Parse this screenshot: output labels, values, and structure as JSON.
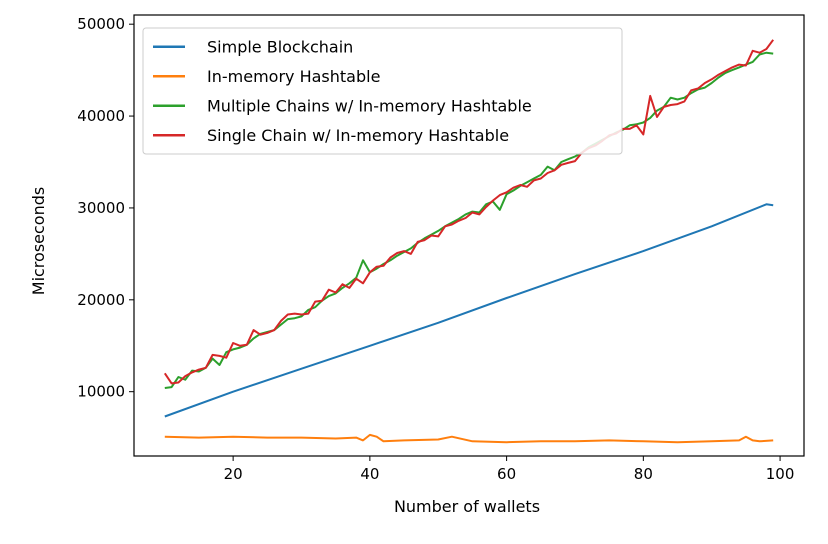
{
  "chart_data": {
    "type": "line",
    "title": "",
    "xlabel": "Number of wallets",
    "ylabel": "Microseconds",
    "xlim": [
      5.5,
      103.5
    ],
    "ylim": [
      3000,
      51000
    ],
    "xticks": [
      20,
      40,
      60,
      80,
      100
    ],
    "yticks": [
      10000,
      20000,
      30000,
      40000,
      50000
    ],
    "grid": false,
    "legend_position": "top-left",
    "series": [
      {
        "name": "Simple Blockchain",
        "color": "#1f77b4",
        "x": [
          10,
          20,
          30,
          40,
          50,
          60,
          70,
          80,
          90,
          98,
          99
        ],
        "y": [
          7300,
          10000,
          12500,
          15000,
          17500,
          20200,
          22800,
          25300,
          28000,
          30400,
          30300
        ]
      },
      {
        "name": "In-memory Hashtable",
        "color": "#ff7f0e",
        "x": [
          10,
          15,
          20,
          25,
          30,
          35,
          38,
          39,
          40,
          41,
          42,
          45,
          50,
          52,
          55,
          60,
          65,
          70,
          75,
          80,
          85,
          90,
          94,
          95,
          96,
          97,
          99
        ],
        "y": [
          5100,
          5000,
          5100,
          5000,
          5000,
          4900,
          5000,
          4700,
          5300,
          5100,
          4600,
          4700,
          4800,
          5100,
          4600,
          4500,
          4600,
          4600,
          4700,
          4600,
          4500,
          4600,
          4700,
          5100,
          4700,
          4600,
          4700
        ]
      },
      {
        "name": "Multiple Chains w/ In-memory Hashtable",
        "color": "#2ca02c",
        "x": [
          10,
          11,
          12,
          13,
          14,
          15,
          16,
          17,
          18,
          19,
          20,
          21,
          22,
          23,
          24,
          25,
          26,
          27,
          28,
          29,
          30,
          31,
          32,
          33,
          34,
          35,
          36,
          37,
          38,
          39,
          40,
          41,
          42,
          43,
          44,
          45,
          46,
          47,
          48,
          49,
          50,
          51,
          52,
          53,
          54,
          55,
          56,
          57,
          58,
          59,
          60,
          61,
          62,
          63,
          64,
          65,
          66,
          67,
          68,
          69,
          70,
          71,
          72,
          73,
          74,
          75,
          76,
          77,
          78,
          79,
          80,
          81,
          82,
          83,
          84,
          85,
          86,
          87,
          88,
          89,
          90,
          91,
          92,
          93,
          94,
          95,
          96,
          97,
          98,
          99
        ],
        "y": [
          10400,
          10500,
          11600,
          11300,
          12300,
          12200,
          12600,
          13600,
          12900,
          14300,
          14600,
          14800,
          15100,
          15800,
          16300,
          16500,
          16700,
          17300,
          17900,
          18000,
          18200,
          18900,
          19200,
          19900,
          20400,
          20700,
          21300,
          21800,
          22400,
          24300,
          23000,
          23400,
          23900,
          24300,
          24800,
          25200,
          25600,
          26200,
          26700,
          27100,
          27500,
          28000,
          28400,
          28800,
          29300,
          29600,
          29500,
          30400,
          30700,
          29800,
          31500,
          31900,
          32400,
          32800,
          33200,
          33600,
          34500,
          34100,
          35000,
          35300,
          35600,
          36000,
          36600,
          37000,
          37400,
          37800,
          38200,
          38500,
          39000,
          39100,
          39300,
          39800,
          40600,
          41000,
          42000,
          41800,
          42000,
          42500,
          42900,
          43100,
          43600,
          44200,
          44700,
          45000,
          45300,
          45600,
          45900,
          46700,
          46900,
          46800
        ]
      },
      {
        "name": "Single Chain w/ In-memory Hashtable",
        "color": "#d62728",
        "x": [
          10,
          11,
          12,
          13,
          14,
          15,
          16,
          17,
          18,
          19,
          20,
          21,
          22,
          23,
          24,
          25,
          26,
          27,
          28,
          29,
          30,
          31,
          32,
          33,
          34,
          35,
          36,
          37,
          38,
          39,
          40,
          41,
          42,
          43,
          44,
          45,
          46,
          47,
          48,
          49,
          50,
          51,
          52,
          53,
          54,
          55,
          56,
          57,
          58,
          59,
          60,
          61,
          62,
          63,
          64,
          65,
          66,
          67,
          68,
          69,
          70,
          71,
          72,
          73,
          74,
          75,
          76,
          77,
          78,
          79,
          80,
          81,
          82,
          83,
          84,
          85,
          86,
          87,
          88,
          89,
          90,
          91,
          92,
          93,
          94,
          95,
          96,
          97,
          98,
          99
        ],
        "y": [
          12000,
          10900,
          11000,
          11700,
          12100,
          12400,
          12600,
          14000,
          13900,
          13700,
          15300,
          15000,
          15100,
          16700,
          16200,
          16400,
          16700,
          17700,
          18400,
          18500,
          18400,
          18500,
          19800,
          19900,
          21100,
          20800,
          21700,
          21300,
          22300,
          21800,
          23000,
          23600,
          23700,
          24600,
          25100,
          25300,
          25000,
          26300,
          26500,
          27000,
          26900,
          28000,
          28200,
          28600,
          28900,
          29500,
          29300,
          30100,
          30800,
          31400,
          31700,
          32200,
          32500,
          32300,
          33000,
          33200,
          33800,
          34100,
          34700,
          34900,
          35100,
          36000,
          36500,
          36800,
          37300,
          37900,
          38100,
          38600,
          38600,
          39000,
          38000,
          42200,
          39900,
          41000,
          41200,
          41300,
          41600,
          42800,
          43000,
          43600,
          44000,
          44500,
          44900,
          45300,
          45600,
          45500,
          47100,
          46900,
          47300,
          48300
        ]
      }
    ]
  }
}
